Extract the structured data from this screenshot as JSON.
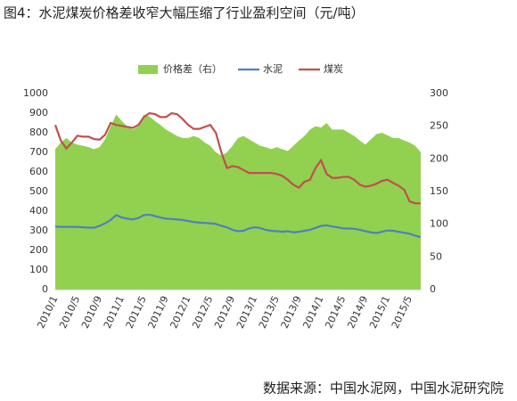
{
  "chart_data": {
    "type": "line",
    "title": "图4：水泥煤炭价格差收窄大幅压缩了行业盈利空间（元/吨）",
    "source": "数据来源：中国水泥网，中国水泥研究院",
    "legend": "top",
    "grid": false,
    "categories": [
      "2010/1",
      null,
      null,
      null,
      "2010/5",
      null,
      null,
      null,
      "2010/9",
      null,
      null,
      null,
      "2011/1",
      null,
      null,
      null,
      "2011/5",
      null,
      null,
      null,
      "2011/9",
      null,
      null,
      null,
      "2012/1",
      null,
      null,
      null,
      "2012/5",
      null,
      null,
      null,
      "2012/9",
      null,
      null,
      null,
      "2013/1",
      null,
      null,
      null,
      "2013/5",
      null,
      null,
      null,
      "2013/9",
      null,
      null,
      null,
      "2014/1",
      null,
      null,
      null,
      "2014/5",
      null,
      null,
      null,
      "2014/9",
      null,
      null,
      null,
      "2015/1",
      null,
      null,
      null,
      "2015/5",
      null,
      null
    ],
    "ylim": [
      0,
      1000
    ],
    "yticks": [
      0,
      100,
      200,
      300,
      400,
      500,
      600,
      700,
      800,
      900,
      1000
    ],
    "y2lim": [
      0,
      300
    ],
    "y2ticks": [
      0,
      50,
      100,
      150,
      200,
      250,
      300
    ],
    "series": [
      {
        "name": "价格差（右）",
        "type": "area",
        "axis": "y2",
        "color": "#92d050",
        "values": [
          215,
          225,
          232,
          225,
          222,
          220,
          218,
          215,
          218,
          230,
          250,
          268,
          258,
          250,
          245,
          250,
          268,
          265,
          258,
          252,
          245,
          240,
          235,
          232,
          232,
          235,
          232,
          225,
          220,
          210,
          205,
          210,
          220,
          232,
          235,
          230,
          225,
          220,
          218,
          215,
          218,
          215,
          212,
          220,
          228,
          235,
          245,
          250,
          248,
          255,
          245,
          245,
          245,
          240,
          235,
          228,
          222,
          230,
          238,
          240,
          236,
          232,
          232,
          228,
          225,
          220,
          210
        ]
      },
      {
        "name": "水泥",
        "type": "line",
        "color": "#4f81bd",
        "values": [
          322,
          320,
          320,
          320,
          320,
          318,
          316,
          316,
          325,
          338,
          355,
          380,
          368,
          362,
          358,
          365,
          380,
          382,
          375,
          368,
          362,
          360,
          358,
          355,
          350,
          345,
          342,
          340,
          338,
          335,
          325,
          318,
          305,
          298,
          300,
          312,
          318,
          314,
          305,
          300,
          298,
          295,
          298,
          292,
          295,
          300,
          305,
          315,
          325,
          328,
          322,
          318,
          312,
          312,
          310,
          305,
          298,
          292,
          288,
          295,
          302,
          300,
          295,
          290,
          285,
          275,
          268
        ]
      },
      {
        "name": "煤炭",
        "type": "line",
        "color": "#c0504d",
        "values": [
          840,
          760,
          720,
          750,
          785,
          780,
          780,
          768,
          765,
          790,
          850,
          840,
          835,
          830,
          825,
          840,
          880,
          900,
          895,
          880,
          880,
          900,
          895,
          870,
          840,
          820,
          820,
          830,
          840,
          800,
          700,
          620,
          630,
          625,
          610,
          595,
          595,
          595,
          595,
          595,
          590,
          580,
          560,
          535,
          520,
          550,
          560,
          620,
          660,
          590,
          570,
          570,
          575,
          575,
          560,
          535,
          525,
          530,
          540,
          555,
          560,
          545,
          530,
          510,
          450,
          440,
          440
        ]
      }
    ]
  }
}
